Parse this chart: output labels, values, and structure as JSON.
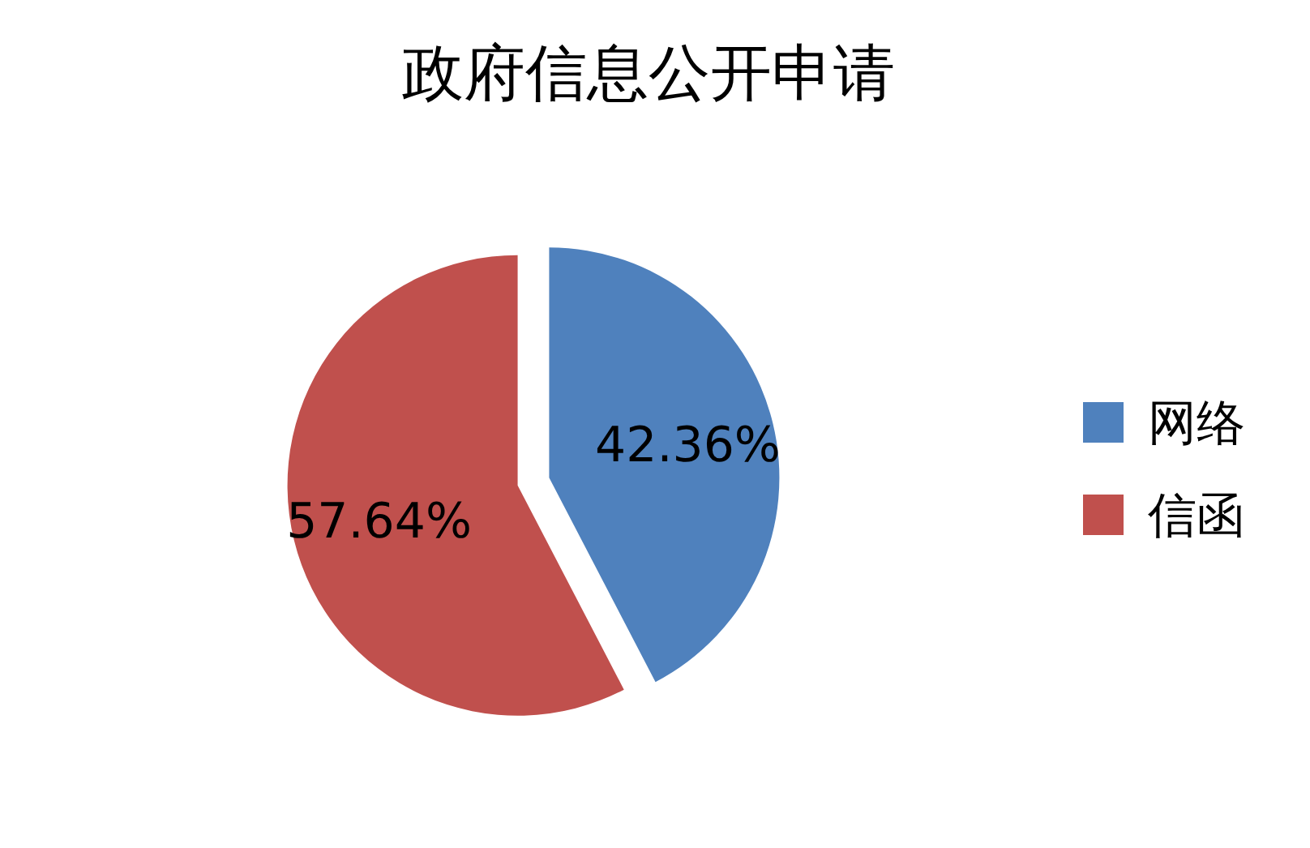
{
  "chart_data": {
    "type": "pie",
    "title": "政府信息公开申请",
    "categories": [
      "网络",
      "信函"
    ],
    "values": [
      42.36,
      57.64
    ],
    "colors": [
      "#4f81bd",
      "#c0504d"
    ],
    "value_labels": [
      "42.36%",
      "57.64%"
    ],
    "legend": "right"
  }
}
